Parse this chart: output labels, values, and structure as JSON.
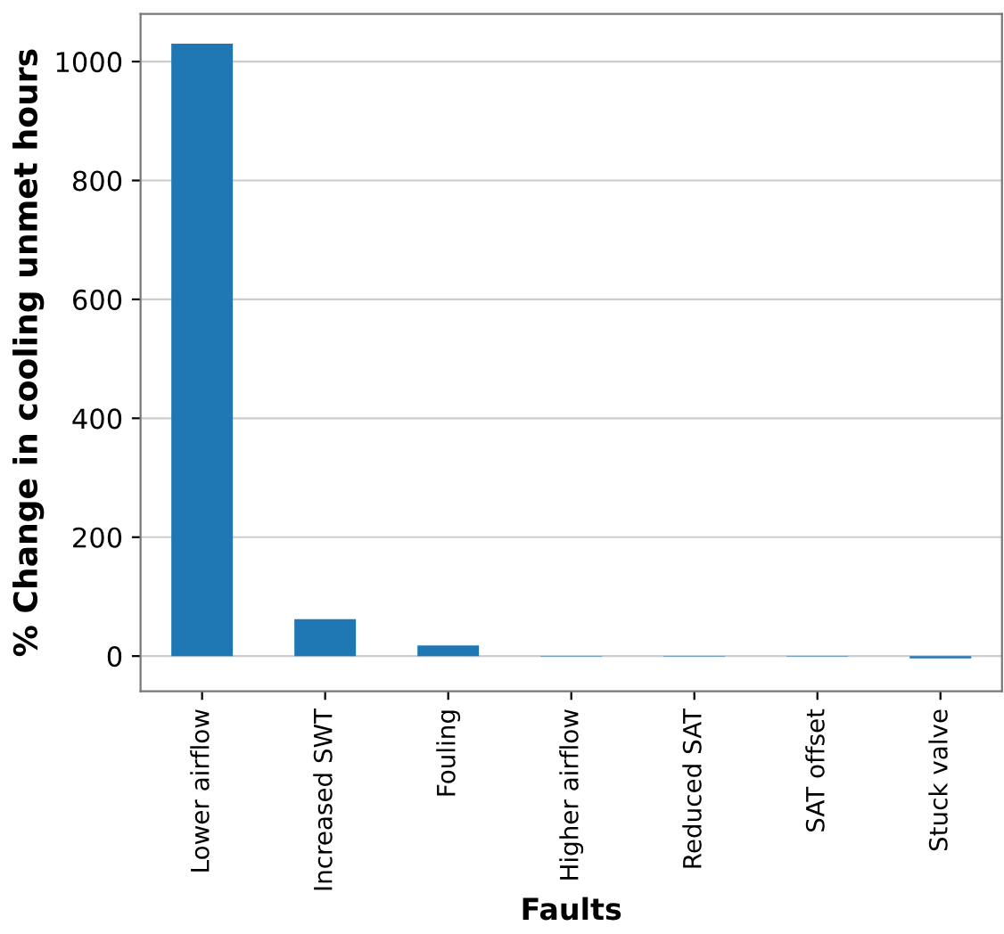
{
  "chart_data": {
    "type": "bar",
    "xlabel": "Faults",
    "ylabel": "% Change in cooling unmet hours",
    "categories": [
      "Lower airflow",
      "Increased SWT",
      "Fouling",
      "Higher airflow",
      "Reduced SAT",
      "SAT offset",
      "Stuck valve"
    ],
    "values": [
      1030,
      62,
      18,
      -1,
      -1,
      -1,
      -4
    ],
    "color": "#1f77b4",
    "ylim": [
      -59,
      1080
    ],
    "yticks": [
      0,
      200,
      400,
      600,
      800,
      1000
    ],
    "grid": "y"
  }
}
